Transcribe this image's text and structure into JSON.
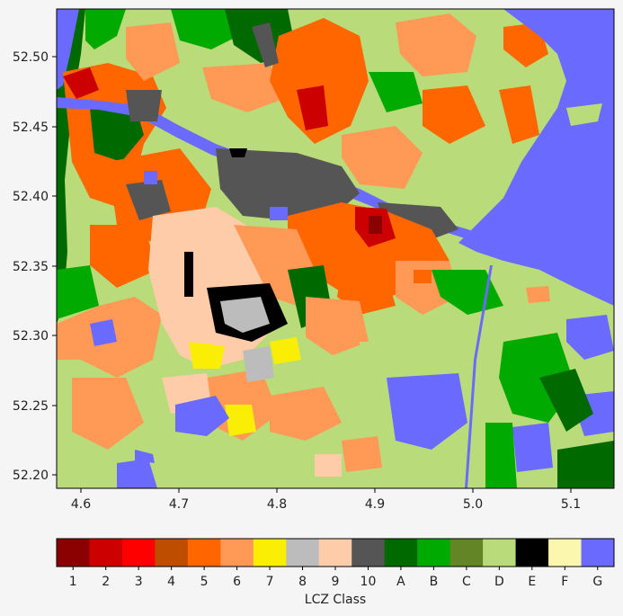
{
  "chart_data": {
    "type": "heatmap",
    "x_ticks": [
      "4.6",
      "4.7",
      "4.8",
      "4.9",
      "5.0",
      "5.1"
    ],
    "y_ticks": [
      "52.50",
      "52.45",
      "52.40",
      "52.35",
      "52.30",
      "52.25",
      "52.20"
    ],
    "colorbar": {
      "label": "LCZ Class",
      "classes": [
        {
          "label": "1",
          "color": "#8b0000"
        },
        {
          "label": "2",
          "color": "#cc0000"
        },
        {
          "label": "3",
          "color": "#ff0000"
        },
        {
          "label": "4",
          "color": "#bf4d00"
        },
        {
          "label": "5",
          "color": "#ff6600"
        },
        {
          "label": "6",
          "color": "#ff9955"
        },
        {
          "label": "7",
          "color": "#faee05"
        },
        {
          "label": "8",
          "color": "#bcbcbc"
        },
        {
          "label": "9",
          "color": "#ffccaa"
        },
        {
          "label": "10",
          "color": "#555555"
        },
        {
          "label": "A",
          "color": "#006a00"
        },
        {
          "label": "B",
          "color": "#00aa00"
        },
        {
          "label": "C",
          "color": "#648526"
        },
        {
          "label": "D",
          "color": "#b9db79"
        },
        {
          "label": "E",
          "color": "#000000"
        },
        {
          "label": "F",
          "color": "#fbf7ae"
        },
        {
          "label": "G",
          "color": "#6a6aff"
        }
      ]
    }
  }
}
